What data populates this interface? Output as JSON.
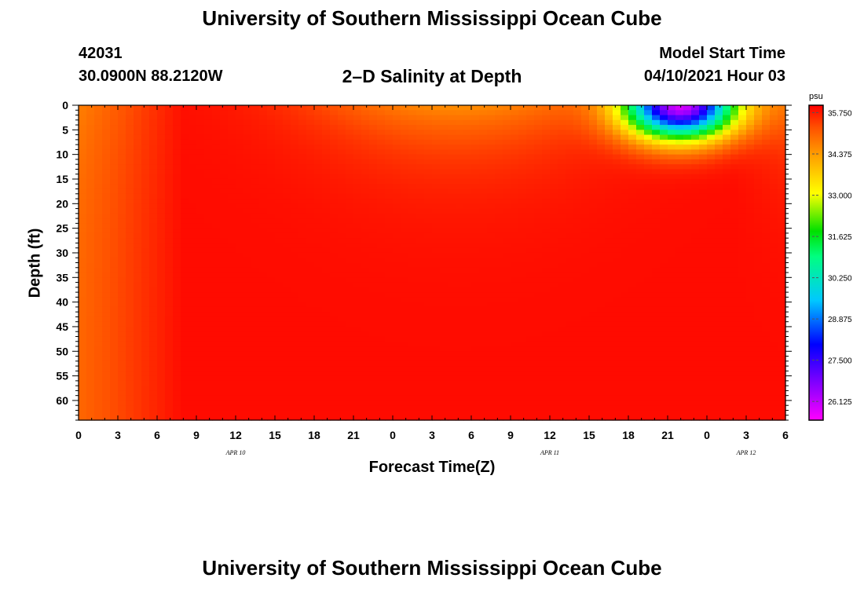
{
  "header": {
    "title": "University of Southern Mississippi Ocean Cube",
    "station_id": "42031",
    "coords": "30.0900N  88.2120W",
    "chart_title": "2–D Salinity at Depth",
    "start_label": "Model Start Time",
    "start_value": "04/10/2021 Hour 03"
  },
  "footer": {
    "title": "University of Southern Mississippi Ocean Cube"
  },
  "chart_data": {
    "type": "heatmap",
    "title": "2–D Salinity at Depth",
    "xlabel": "Forecast Time(Z)",
    "ylabel": "Depth (ft)",
    "x_hours": [
      0,
      54
    ],
    "x_tick_step_hours": 3,
    "x_tick_labels": [
      "0",
      "3",
      "6",
      "9",
      "12",
      "15",
      "18",
      "21",
      "0",
      "3",
      "6",
      "9",
      "12",
      "15",
      "18",
      "21",
      "0",
      "3",
      "6"
    ],
    "date_labels": [
      {
        "hour": 12,
        "label": "APR  10"
      },
      {
        "hour": 36,
        "label": "APR  11"
      },
      {
        "hour": 51,
        "label": "APR  12"
      }
    ],
    "ylim": [
      0,
      64
    ],
    "y_ticks": [
      "0",
      "5",
      "10",
      "15",
      "20",
      "25",
      "30",
      "35",
      "40",
      "45",
      "50",
      "55",
      "60"
    ],
    "colorbar": {
      "unit": "psu",
      "min": 25.5,
      "max": 36.0,
      "labels": [
        "35.750",
        "34.375",
        "33.000",
        "31.625",
        "30.250",
        "28.875",
        "27.500",
        "26.125"
      ],
      "colors": [
        "#ff00ff",
        "#8000ff",
        "#0000ff",
        "#00c8ff",
        "#00ff80",
        "#00e000",
        "#ffff00",
        "#ffa000",
        "#ff5000",
        "#ff0000"
      ]
    },
    "features": {
      "background_psu": 35.9,
      "early_fresh_band": {
        "hour_range": [
          0,
          8
        ],
        "depth_max_ft": 64,
        "min_psu": 34.7
      },
      "mid_plume": {
        "hour_range": [
          14,
          44
        ],
        "depth_max_ft": 18,
        "min_psu": 34.5
      },
      "late_fresh_lens": {
        "center_hour": 46,
        "min_psu": 26.0,
        "depth_max_ft": 15
      }
    }
  }
}
